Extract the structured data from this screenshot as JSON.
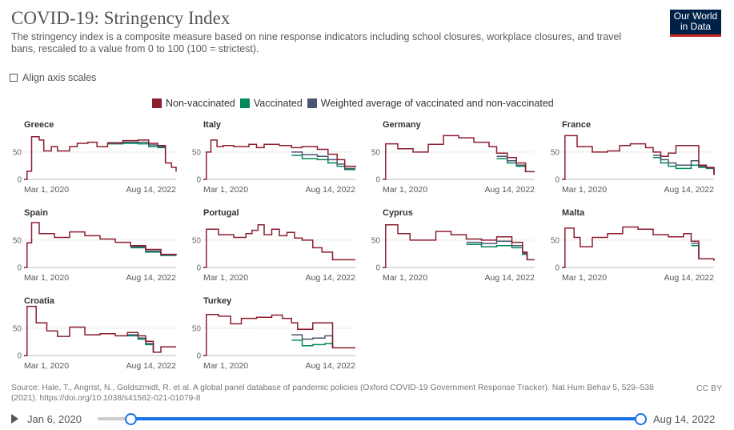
{
  "header": {
    "title": "COVID-19: Stringency Index",
    "subtitle": "The stringency index is a composite measure based on nine response indicators including school closures, workplace closures, and travel bans, rescaled to a value from 0 to 100 (100 = strictest).",
    "logo_line1": "Our World",
    "logo_line2": "in Data"
  },
  "controls": {
    "align_label": "Align axis scales",
    "align_checked": false
  },
  "legend": [
    {
      "label": "Non-vaccinated",
      "color": "#8c1d2f"
    },
    {
      "label": "Vaccinated",
      "color": "#00875a"
    },
    {
      "label": "Weighted average of vaccinated and non-vaccinated",
      "color": "#4a5573"
    }
  ],
  "chart_data": {
    "type": "line",
    "facet": "small-multiples",
    "x_tick_labels": [
      "Mar 1, 2020",
      "Aug 14, 2022"
    ],
    "y_ticks": [
      0,
      50
    ],
    "x_domain": [
      "2020-01-06",
      "2022-08-14"
    ],
    "colors": {
      "nonvac": "#8c1d2f",
      "vac": "#00875a",
      "avg": "#4a5573"
    },
    "countries": [
      {
        "name": "Greece",
        "ymax": 85,
        "nonvac": [
          [
            0,
            0
          ],
          [
            0.02,
            15
          ],
          [
            0.05,
            78
          ],
          [
            0.1,
            72
          ],
          [
            0.13,
            52
          ],
          [
            0.18,
            60
          ],
          [
            0.22,
            52
          ],
          [
            0.3,
            60
          ],
          [
            0.35,
            66
          ],
          [
            0.42,
            68
          ],
          [
            0.48,
            60
          ],
          [
            0.55,
            67
          ],
          [
            0.65,
            71
          ],
          [
            0.75,
            72
          ],
          [
            0.82,
            66
          ],
          [
            0.88,
            62
          ],
          [
            0.93,
            30
          ],
          [
            0.97,
            22
          ],
          [
            1.0,
            14
          ]
        ],
        "vac": [
          [
            0.55,
            65
          ],
          [
            0.65,
            66
          ],
          [
            0.75,
            65
          ],
          [
            0.82,
            60
          ],
          [
            0.88,
            58
          ],
          [
            0.93,
            30
          ]
        ],
        "avg": [
          [
            0.55,
            66
          ],
          [
            0.65,
            68
          ],
          [
            0.75,
            68
          ],
          [
            0.82,
            63
          ],
          [
            0.88,
            60
          ],
          [
            0.93,
            30
          ]
        ]
      },
      {
        "name": "Italy",
        "ymax": 85,
        "nonvac": [
          [
            0,
            0
          ],
          [
            0.02,
            50
          ],
          [
            0.05,
            72
          ],
          [
            0.09,
            60
          ],
          [
            0.13,
            62
          ],
          [
            0.2,
            60
          ],
          [
            0.3,
            64
          ],
          [
            0.35,
            58
          ],
          [
            0.4,
            64
          ],
          [
            0.5,
            62
          ],
          [
            0.58,
            58
          ],
          [
            0.65,
            60
          ],
          [
            0.75,
            55
          ],
          [
            0.82,
            46
          ],
          [
            0.88,
            36
          ],
          [
            0.93,
            24
          ],
          [
            1.0,
            22
          ]
        ],
        "vac": [
          [
            0.58,
            44
          ],
          [
            0.65,
            38
          ],
          [
            0.75,
            36
          ],
          [
            0.82,
            30
          ],
          [
            0.88,
            24
          ],
          [
            0.93,
            18
          ],
          [
            1.0,
            18
          ]
        ],
        "avg": [
          [
            0.58,
            50
          ],
          [
            0.65,
            45
          ],
          [
            0.75,
            42
          ],
          [
            0.82,
            36
          ],
          [
            0.88,
            28
          ],
          [
            0.93,
            20
          ],
          [
            1.0,
            20
          ]
        ]
      },
      {
        "name": "Germany",
        "ymax": 85,
        "nonvac": [
          [
            0,
            0
          ],
          [
            0.02,
            65
          ],
          [
            0.1,
            56
          ],
          [
            0.2,
            50
          ],
          [
            0.3,
            64
          ],
          [
            0.4,
            80
          ],
          [
            0.5,
            76
          ],
          [
            0.6,
            68
          ],
          [
            0.7,
            60
          ],
          [
            0.75,
            48
          ],
          [
            0.82,
            40
          ],
          [
            0.88,
            30
          ],
          [
            0.94,
            14
          ],
          [
            1.0,
            14
          ]
        ],
        "vac": [
          [
            0.75,
            38
          ],
          [
            0.82,
            30
          ],
          [
            0.88,
            24
          ],
          [
            0.94,
            14
          ]
        ],
        "avg": [
          [
            0.75,
            42
          ],
          [
            0.82,
            34
          ],
          [
            0.88,
            26
          ],
          [
            0.94,
            14
          ]
        ]
      },
      {
        "name": "France",
        "ymax": 85,
        "nonvac": [
          [
            0,
            0
          ],
          [
            0.02,
            80
          ],
          [
            0.1,
            60
          ],
          [
            0.2,
            50
          ],
          [
            0.3,
            52
          ],
          [
            0.38,
            62
          ],
          [
            0.45,
            65
          ],
          [
            0.55,
            58
          ],
          [
            0.6,
            50
          ],
          [
            0.65,
            42
          ],
          [
            0.7,
            48
          ],
          [
            0.75,
            62
          ],
          [
            0.85,
            62
          ],
          [
            0.9,
            26
          ],
          [
            0.95,
            22
          ],
          [
            1.0,
            8
          ]
        ],
        "vac": [
          [
            0.6,
            40
          ],
          [
            0.65,
            30
          ],
          [
            0.7,
            24
          ],
          [
            0.75,
            20
          ],
          [
            0.85,
            26
          ],
          [
            0.9,
            22
          ],
          [
            0.95,
            20
          ],
          [
            1.0,
            8
          ]
        ],
        "avg": [
          [
            0.6,
            44
          ],
          [
            0.65,
            36
          ],
          [
            0.7,
            30
          ],
          [
            0.75,
            26
          ],
          [
            0.85,
            34
          ],
          [
            0.9,
            24
          ],
          [
            0.95,
            21
          ],
          [
            1.0,
            8
          ]
        ]
      },
      {
        "name": "Spain",
        "ymax": 85,
        "nonvac": [
          [
            0,
            0
          ],
          [
            0.02,
            45
          ],
          [
            0.05,
            82
          ],
          [
            0.1,
            62
          ],
          [
            0.2,
            55
          ],
          [
            0.3,
            65
          ],
          [
            0.4,
            58
          ],
          [
            0.5,
            52
          ],
          [
            0.6,
            46
          ],
          [
            0.7,
            40
          ],
          [
            0.8,
            33
          ],
          [
            0.9,
            24
          ],
          [
            1.0,
            22
          ]
        ],
        "vac": [
          [
            0.7,
            36
          ],
          [
            0.8,
            28
          ],
          [
            0.9,
            22
          ],
          [
            1.0,
            22
          ]
        ],
        "avg": [
          [
            0.7,
            38
          ],
          [
            0.8,
            30
          ],
          [
            0.9,
            23
          ],
          [
            1.0,
            22
          ]
        ]
      },
      {
        "name": "Portugal",
        "ymax": 85,
        "nonvac": [
          [
            0,
            0
          ],
          [
            0.02,
            70
          ],
          [
            0.1,
            60
          ],
          [
            0.2,
            55
          ],
          [
            0.28,
            62
          ],
          [
            0.32,
            68
          ],
          [
            0.36,
            78
          ],
          [
            0.4,
            60
          ],
          [
            0.45,
            70
          ],
          [
            0.5,
            58
          ],
          [
            0.55,
            64
          ],
          [
            0.6,
            54
          ],
          [
            0.65,
            50
          ],
          [
            0.72,
            36
          ],
          [
            0.78,
            28
          ],
          [
            0.85,
            14
          ],
          [
            1.0,
            14
          ]
        ],
        "vac": [],
        "avg": []
      },
      {
        "name": "Cyprus",
        "ymax": 85,
        "nonvac": [
          [
            0,
            0
          ],
          [
            0.02,
            78
          ],
          [
            0.1,
            62
          ],
          [
            0.18,
            50
          ],
          [
            0.25,
            50
          ],
          [
            0.35,
            66
          ],
          [
            0.45,
            60
          ],
          [
            0.55,
            52
          ],
          [
            0.65,
            50
          ],
          [
            0.75,
            56
          ],
          [
            0.85,
            46
          ],
          [
            0.92,
            28
          ],
          [
            0.95,
            14
          ],
          [
            1.0,
            14
          ]
        ],
        "vac": [
          [
            0.55,
            42
          ],
          [
            0.65,
            38
          ],
          [
            0.75,
            40
          ],
          [
            0.85,
            36
          ],
          [
            0.92,
            24
          ],
          [
            0.95,
            14
          ]
        ],
        "avg": [
          [
            0.55,
            46
          ],
          [
            0.65,
            44
          ],
          [
            0.75,
            48
          ],
          [
            0.85,
            40
          ],
          [
            0.92,
            26
          ],
          [
            0.95,
            14
          ]
        ]
      },
      {
        "name": "Malta",
        "ymax": 85,
        "nonvac": [
          [
            0,
            0
          ],
          [
            0.02,
            72
          ],
          [
            0.08,
            55
          ],
          [
            0.12,
            38
          ],
          [
            0.2,
            55
          ],
          [
            0.3,
            62
          ],
          [
            0.4,
            74
          ],
          [
            0.5,
            70
          ],
          [
            0.6,
            60
          ],
          [
            0.7,
            56
          ],
          [
            0.8,
            62
          ],
          [
            0.85,
            48
          ],
          [
            0.9,
            16
          ],
          [
            1.0,
            12
          ]
        ],
        "vac": [
          [
            0.85,
            40
          ],
          [
            0.9,
            16
          ]
        ],
        "avg": [
          [
            0.85,
            44
          ],
          [
            0.9,
            16
          ]
        ]
      },
      {
        "name": "Croatia",
        "ymax": 85,
        "nonvac": [
          [
            0,
            0
          ],
          [
            0.02,
            90
          ],
          [
            0.08,
            60
          ],
          [
            0.15,
            45
          ],
          [
            0.22,
            35
          ],
          [
            0.3,
            52
          ],
          [
            0.4,
            38
          ],
          [
            0.5,
            40
          ],
          [
            0.6,
            36
          ],
          [
            0.68,
            42
          ],
          [
            0.75,
            36
          ],
          [
            0.8,
            26
          ],
          [
            0.85,
            6
          ],
          [
            0.9,
            16
          ],
          [
            1.0,
            16
          ]
        ],
        "vac": [
          [
            0.68,
            36
          ],
          [
            0.75,
            30
          ],
          [
            0.8,
            20
          ],
          [
            0.85,
            6
          ]
        ],
        "avg": [
          [
            0.68,
            38
          ],
          [
            0.75,
            32
          ],
          [
            0.8,
            22
          ],
          [
            0.85,
            6
          ]
        ]
      },
      {
        "name": "Turkey",
        "ymax": 85,
        "nonvac": [
          [
            0,
            0
          ],
          [
            0.02,
            75
          ],
          [
            0.1,
            72
          ],
          [
            0.18,
            58
          ],
          [
            0.25,
            68
          ],
          [
            0.35,
            70
          ],
          [
            0.45,
            74
          ],
          [
            0.52,
            68
          ],
          [
            0.58,
            60
          ],
          [
            0.62,
            48
          ],
          [
            0.72,
            60
          ],
          [
            0.8,
            60
          ],
          [
            0.85,
            14
          ],
          [
            1.0,
            14
          ]
        ],
        "vac": [
          [
            0.58,
            28
          ],
          [
            0.65,
            18
          ],
          [
            0.72,
            20
          ],
          [
            0.8,
            22
          ],
          [
            0.85,
            14
          ]
        ],
        "avg": [
          [
            0.58,
            38
          ],
          [
            0.65,
            30
          ],
          [
            0.72,
            32
          ],
          [
            0.8,
            36
          ],
          [
            0.85,
            14
          ]
        ]
      }
    ]
  },
  "source": {
    "text": "Source: Hale, T., Angrist, N., Goldszmidt, R. et al. A global panel database of pandemic policies (Oxford COVID-19 Government Response Tracker). Nat Hum Behav 5, 529–538 (2021). https://doi.org/10.1038/s41562-021-01079-8",
    "license": "CC BY"
  },
  "timeline": {
    "start": "Jan 6, 2020",
    "end": "Aug 14, 2022",
    "start_fraction": 0.06,
    "end_fraction": 1.0
  }
}
